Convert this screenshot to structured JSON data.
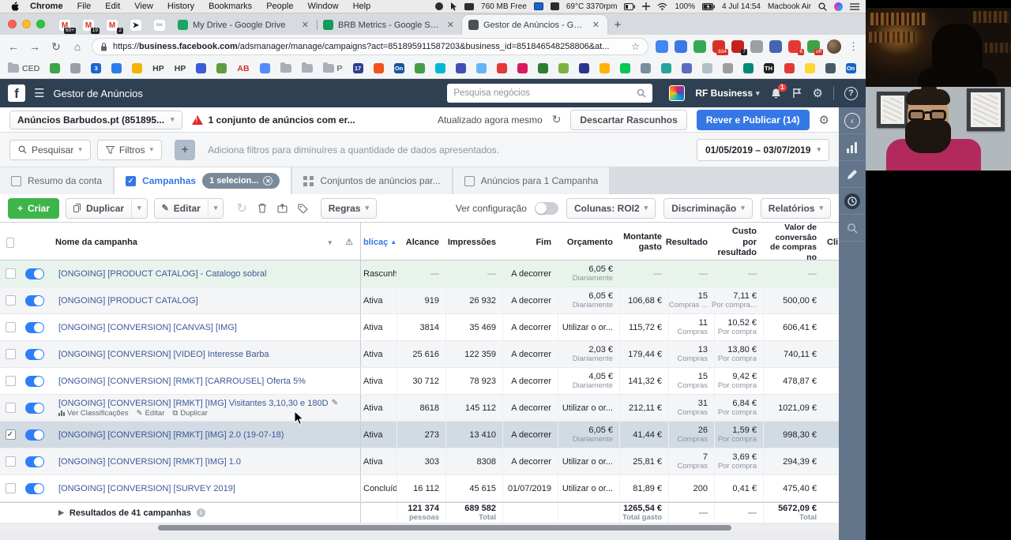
{
  "menubar": {
    "items": [
      "Chrome",
      "File",
      "Edit",
      "View",
      "History",
      "Bookmarks",
      "People",
      "Window",
      "Help"
    ],
    "right_tokens": [
      {
        "icon": "record-icon"
      },
      {
        "icon": "pointer-icon"
      },
      {
        "icon": "memory-icon"
      },
      {
        "text": "760 MB Free"
      },
      {
        "icon": "teamviewer-icon"
      },
      {
        "icon": "display-icon"
      },
      {
        "text": "69°C 3370rpm"
      },
      {
        "icon": "battery-gauge-icon"
      },
      {
        "icon": "crosshair-icon"
      },
      {
        "icon": "wifi-icon"
      },
      {
        "text": "100%"
      },
      {
        "icon": "battery-charging-icon"
      },
      {
        "text": "4 Jul 14:54"
      },
      {
        "text": "Macbook Air"
      },
      {
        "icon": "spotlight-icon"
      },
      {
        "icon": "siri-icon"
      },
      {
        "icon": "notification-list-icon"
      }
    ]
  },
  "browser": {
    "pinned_tabs": [
      {
        "letter": "M",
        "badge": "60+",
        "color": "#d93025"
      },
      {
        "letter": "M",
        "badge": "19",
        "color": "#d93025"
      },
      {
        "letter": "M",
        "badge": "2",
        "color": "#d93025"
      },
      {
        "letter": "➤",
        "badge": "",
        "color": "#202124"
      },
      {
        "letter": "loc",
        "badge": "",
        "color": "#9aa0a6"
      }
    ],
    "tabs": [
      {
        "title": "My Drive - Google Drive",
        "fav": "#1da462",
        "active": false
      },
      {
        "title": "BRB Metrics - Google Sheets",
        "fav": "#0f9d58",
        "active": false
      },
      {
        "title": "Gestor de Anúncios - Gerir An",
        "fav": "#4b4f56",
        "active": true
      }
    ],
    "new_tab_label": "+",
    "url_prefix": "https://",
    "url_domain": "business.facebook.com",
    "url_path": "/adsmanager/manage/campaigns?act=851895911587203&business_id=851846548258806&at...",
    "extensions": [
      {
        "name": "link-extension",
        "color": "#4285f4",
        "badge": ""
      },
      {
        "name": "picker-extension",
        "color": "#3b78e7",
        "badge": ""
      },
      {
        "name": "green-extension",
        "color": "#34a853",
        "badge": ""
      },
      {
        "name": "red-d-extension",
        "color": "#d93025",
        "badge": "834"
      },
      {
        "name": "pixel-helper-extension",
        "color": "#c5221f",
        "badge": "7"
      },
      {
        "name": "code-extension",
        "color": "#9aa0a6",
        "badge": ""
      },
      {
        "name": "blue-extension",
        "color": "#4267b2",
        "badge": ""
      },
      {
        "name": "red-extension",
        "color": "#e53935",
        "badge": "6"
      },
      {
        "name": "session-extension",
        "color": "#43a047",
        "badge": "off"
      }
    ],
    "bookmarks": [
      {
        "t": "folder",
        "label": "CED"
      },
      {
        "t": "icon",
        "c": "#3da54a"
      },
      {
        "t": "icon",
        "c": "#9aa0a6"
      },
      {
        "t": "icon",
        "c": "#1967d2",
        "label": "3"
      },
      {
        "t": "icon",
        "c": "#2b7de9"
      },
      {
        "t": "icon",
        "c": "#f4b400"
      },
      {
        "t": "text",
        "label": "HP"
      },
      {
        "t": "text",
        "label": "HP"
      },
      {
        "t": "icon",
        "c": "#3b5bdb"
      },
      {
        "t": "icon",
        "c": "#5f9e3e"
      },
      {
        "t": "text",
        "label": "AB"
      },
      {
        "t": "icon",
        "c": "#4e8cff"
      },
      {
        "t": "folder",
        "label": ""
      },
      {
        "t": "folder",
        "label": ""
      },
      {
        "t": "folder",
        "label": "P"
      },
      {
        "t": "icon",
        "c": "#2c3e8f",
        "label": "17"
      },
      {
        "t": "icon",
        "c": "#f4511e"
      },
      {
        "t": "icon",
        "c": "#1256a0",
        "label": "On"
      },
      {
        "t": "icon",
        "c": "#43a047"
      },
      {
        "t": "icon",
        "c": "#00b8d4"
      },
      {
        "t": "icon",
        "c": "#3f51b5"
      },
      {
        "t": "icon",
        "c": "#64b5f6"
      },
      {
        "t": "icon",
        "c": "#e53935"
      },
      {
        "t": "icon",
        "c": "#d81b60"
      },
      {
        "t": "icon",
        "c": "#2e7d32"
      },
      {
        "t": "icon",
        "c": "#7cb342"
      },
      {
        "t": "icon",
        "c": "#283593"
      },
      {
        "t": "icon",
        "c": "#ffb300"
      },
      {
        "t": "icon",
        "c": "#00c853"
      },
      {
        "t": "icon",
        "c": "#78909c"
      },
      {
        "t": "icon",
        "c": "#26a69a"
      },
      {
        "t": "icon",
        "c": "#5c6bc0"
      },
      {
        "t": "icon",
        "c": "#b0bec5"
      },
      {
        "t": "icon",
        "c": "#9e9e9e"
      },
      {
        "t": "icon",
        "c": "#00897b"
      },
      {
        "t": "icon",
        "c": "#212121",
        "label": "TH"
      },
      {
        "t": "icon",
        "c": "#e53935"
      },
      {
        "t": "icon",
        "c": "#fdd835"
      },
      {
        "t": "icon",
        "c": "#455a64"
      },
      {
        "t": "icon",
        "c": "#1565c0",
        "label": "On"
      }
    ],
    "bookmarks_overflow": "»"
  },
  "fb": {
    "header": {
      "logo": "f",
      "title": "Gestor de Anúncios",
      "search_placeholder": "Pesquisa negócios",
      "account_name": "RF Business",
      "bell_badge": "1",
      "help": "?"
    },
    "subheader": {
      "account_dropdown": "Anúncios Barbudos.pt (851895...",
      "alert": "1 conjunto de anúncios com er...",
      "updated": "Atualizado agora mesmo",
      "discard_button": "Descartar Rascunhos",
      "publish_button": "Rever e Publicar (14)"
    },
    "filterbar": {
      "search_label": "Pesquisar",
      "filters_label": "Filtros",
      "add_label": "+",
      "hint": "Adiciona filtros para diminuíres a quantidade de dados apresentados.",
      "date_range": "01/05/2019 – 03/07/2019"
    },
    "tabs": [
      {
        "label": "Resumo da conta",
        "icon": "account-summary-icon",
        "active": false
      },
      {
        "label": "Campanhas",
        "icon": "checkbox-icon",
        "active": true,
        "pill": "1 selecion..."
      },
      {
        "label": "Conjuntos de anúncios par...",
        "icon": "grid-icon",
        "active": false
      },
      {
        "label": "Anúncios para 1 Campanha",
        "icon": "ad-icon",
        "active": false
      }
    ],
    "toolbar": {
      "create": "Criar",
      "duplicate": "Duplicar",
      "edit": "Editar",
      "rules": "Regras",
      "view_setup": "Ver configuração",
      "columns": "Colunas: ROI2",
      "breakdown": "Discriminação",
      "reports": "Relatórios"
    },
    "table": {
      "headers": {
        "name": "Nome da campanha",
        "warn": "⚠",
        "delivery": "blicaç",
        "reach": "Alcance",
        "impressions": "Impressões",
        "end": "Fim",
        "budget": "Orçamento",
        "spent": "Montante gasto",
        "result": "Resultado",
        "cost": "Custo por resultado",
        "value": "Valor de conversão de compras no",
        "clicks": "Cli"
      },
      "rows": [
        {
          "name": "[ONGOING] [PRODUCT CATALOG] - Catalogo sobral",
          "status": "Rascunho",
          "reach": "—",
          "impressions": "—",
          "end": "A decorrer",
          "budget": "6,05 €",
          "budget_sub": "Diariamente",
          "spent": "—",
          "result": "—",
          "result_sub": "",
          "cost": "—",
          "cost_sub": "",
          "value": "—",
          "draft": true
        },
        {
          "name": "[ONGOING] [PRODUCT CATALOG]",
          "status": "Ativa",
          "reach": "919",
          "impressions": "26 932",
          "end": "A decorrer",
          "budget": "6,05 €",
          "budget_sub": "Diariamente",
          "spent": "106,68 €",
          "result": "15",
          "result_sub": "Compras ...",
          "cost": "7,11 €",
          "cost_sub": "Por compra...",
          "value": "500,00 €"
        },
        {
          "name": "[ONGOING] [CONVERSION] [CANVAS] [IMG]",
          "status": "Ativa",
          "reach": "3814",
          "impressions": "35 469",
          "end": "A decorrer",
          "budget": "Utilizar o or...",
          "budget_sub": "",
          "spent": "115,72 €",
          "result": "11",
          "result_sub": "Compras",
          "cost": "10,52 €",
          "cost_sub": "Por compra",
          "value": "606,41 €"
        },
        {
          "name": "[ONGOING] [CONVERSION] [VIDEO] Interesse Barba",
          "status": "Ativa",
          "reach": "25 616",
          "impressions": "122 359",
          "end": "A decorrer",
          "budget": "2,03 €",
          "budget_sub": "Diariamente",
          "spent": "179,44 €",
          "result": "13",
          "result_sub": "Compras",
          "cost": "13,80 €",
          "cost_sub": "Por compra",
          "value": "740,11 €"
        },
        {
          "name": "[ONGOING] [CONVERSION] [RMKT] [CARROUSEL] Oferta 5%",
          "status": "Ativa",
          "reach": "30 712",
          "impressions": "78 923",
          "end": "A decorrer",
          "budget": "4,05 €",
          "budget_sub": "Diariamente",
          "spent": "141,32 €",
          "result": "15",
          "result_sub": "Compras",
          "cost": "9,42 €",
          "cost_sub": "Por compra",
          "value": "478,87 €"
        },
        {
          "name": "[ONGOING] [CONVERSION] [RMKT] [IMG] Visitantes 3,10,30 e 180D",
          "status": "Ativa",
          "reach": "8618",
          "impressions": "145 112",
          "end": "A decorrer",
          "budget": "Utilizar o or...",
          "budget_sub": "",
          "spent": "212,11 €",
          "result": "31",
          "result_sub": "Compras",
          "cost": "6,84 €",
          "cost_sub": "Por compra",
          "value": "1021,09 €",
          "hover": true,
          "actions": [
            "Ver Classificações",
            "Editar",
            "Duplicar"
          ]
        },
        {
          "name": "[ONGOING] [CONVERSION] [RMKT] [IMG] 2.0 (19-07-18)",
          "status": "Ativa",
          "reach": "273",
          "impressions": "13 410",
          "end": "A decorrer",
          "budget": "6,05 €",
          "budget_sub": "Diariamente",
          "spent": "41,44 €",
          "result": "26",
          "result_sub": "Compras",
          "cost": "1,59 €",
          "cost_sub": "Por compra",
          "value": "998,30 €",
          "selected": true
        },
        {
          "name": "[ONGOING] [CONVERSION] [RMKT] [IMG] 1.0",
          "status": "Ativa",
          "reach": "303",
          "impressions": "8308",
          "end": "A decorrer",
          "budget": "Utilizar o or...",
          "budget_sub": "",
          "spent": "25,81 €",
          "result": "7",
          "result_sub": "Compras",
          "cost": "3,69 €",
          "cost_sub": "Por compra",
          "value": "294,39 €"
        },
        {
          "name": "[ONGOING] [CONVERSION] [SURVEY 2019]",
          "status": "Concluída",
          "reach": "16 112",
          "impressions": "45 615",
          "end": "01/07/2019",
          "budget": "Utilizar o or...",
          "budget_sub": "",
          "spent": "81,89 €",
          "result": "200",
          "result_sub": "",
          "cost": "0,41 €",
          "cost_sub": "",
          "value": "475,40 €"
        }
      ],
      "footer": {
        "label": "Resultados de 41 campanhas",
        "reach": "121 374",
        "reach_sub": "pessoas",
        "impressions": "689 582",
        "impressions_sub": "Total",
        "spent": "1265,54 €",
        "spent_sub": "Total gasto",
        "result": "—",
        "cost": "—",
        "value": "5672,09 €",
        "value_sub": "Total"
      }
    },
    "rail_icons": [
      "chevron-left-icon",
      "bar-chart-icon",
      "pencil-icon",
      "clock-icon",
      "search-icon"
    ],
    "colors": {
      "header_navy": "#2f4052",
      "accent_blue": "#3578e5",
      "green": "#3eb54a",
      "link_blue": "#3b5998",
      "toggle_blue": "#2d7ff9",
      "selected_row": "#d2dae3",
      "draft_row": "#e8f4eb",
      "rail_slate": "#62758a"
    }
  },
  "video": {
    "frames": [
      "bookshelf-scene",
      "presenter-facecam"
    ],
    "shirt_color": "#b22a5b"
  }
}
